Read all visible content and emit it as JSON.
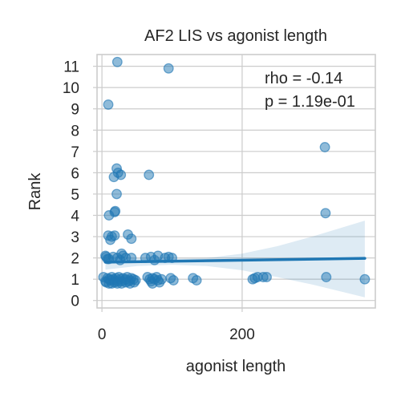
{
  "chart_data": {
    "type": "scatter",
    "title": "AF2 LIS vs agonist length",
    "xlabel": "agonist length",
    "ylabel": "Rank",
    "xlim": [
      -7,
      390
    ],
    "ylim": [
      -0.35,
      11.55
    ],
    "xticks": [
      0,
      200
    ],
    "yticks": [
      0,
      1,
      2,
      3,
      4,
      5,
      6,
      7,
      8,
      9,
      10,
      11
    ],
    "grid": true,
    "annotations": [
      "rho = -0.14",
      "p = 1.19e-01"
    ],
    "colors": {
      "points": "#1f77b4",
      "line": "#1f77b4",
      "band": "#1f77b4"
    },
    "points": {
      "x": [
        22,
        95,
        9,
        318,
        21,
        23,
        27,
        67,
        17,
        21,
        19,
        18,
        10,
        319,
        9,
        12,
        14,
        18,
        37,
        42,
        5,
        8,
        22,
        28,
        34,
        6,
        10,
        16,
        26,
        30,
        42,
        62,
        70,
        75,
        80,
        90,
        95,
        100,
        2,
        5,
        8,
        10,
        12,
        14,
        16,
        18,
        20,
        22,
        24,
        26,
        28,
        30,
        32,
        34,
        36,
        38,
        40,
        42,
        45,
        48,
        65,
        68,
        70,
        72,
        75,
        78,
        80,
        85,
        98,
        102,
        130,
        135,
        215,
        218,
        222,
        230,
        235,
        320,
        375,
        6,
        10,
        14,
        18,
        22,
        28,
        34,
        40,
        46,
        72,
        82
      ],
      "y": [
        11.2,
        10.9,
        9.2,
        7.2,
        6.2,
        6.0,
        5.9,
        5.9,
        5.8,
        5.0,
        4.2,
        4.15,
        4.0,
        4.1,
        3.05,
        2.85,
        3.0,
        3.05,
        3.1,
        2.9,
        2.1,
        1.95,
        2.0,
        2.2,
        2.0,
        2.05,
        1.95,
        2.05,
        1.9,
        2.1,
        2.0,
        2.0,
        2.05,
        1.9,
        2.1,
        2.0,
        2.05,
        2.0,
        1.1,
        0.9,
        1.05,
        1.0,
        0.95,
        1.1,
        1.0,
        0.95,
        1.05,
        0.9,
        1.1,
        1.0,
        0.9,
        1.05,
        0.95,
        1.0,
        1.1,
        0.9,
        0.95,
        1.05,
        1.0,
        0.95,
        1.1,
        1.0,
        0.9,
        1.05,
        1.0,
        1.1,
        0.95,
        1.0,
        1.05,
        0.95,
        1.05,
        0.95,
        1.0,
        1.05,
        1.1,
        1.1,
        1.1,
        1.1,
        1.0,
        0.85,
        0.8,
        0.8,
        0.85,
        0.8,
        0.8,
        0.85,
        0.8,
        0.85,
        0.8,
        0.85
      ]
    },
    "regression": {
      "x": [
        5,
        375
      ],
      "y": [
        1.8,
        1.98
      ]
    },
    "confidence_band": {
      "x": [
        5,
        50,
        100,
        150,
        200,
        250,
        300,
        375
      ],
      "lower": [
        1.45,
        1.62,
        1.68,
        1.62,
        1.42,
        1.1,
        0.75,
        0.15
      ],
      "upper": [
        2.15,
        1.98,
        1.95,
        2.0,
        2.2,
        2.55,
        3.0,
        3.75
      ]
    }
  }
}
